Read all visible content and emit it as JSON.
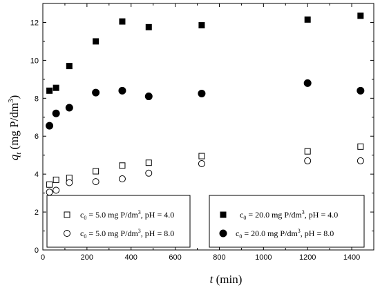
{
  "chart_data": {
    "type": "scatter",
    "title": "",
    "xlabel": {
      "main": "t",
      "unit": " (min)"
    },
    "ylabel": {
      "q": "q",
      "sub": "t",
      "unit": " (mg P/dm",
      "sup": "3",
      "close": ")"
    },
    "xlim": [
      0,
      1500
    ],
    "ylim": [
      0,
      13
    ],
    "xticks": [
      0,
      200,
      400,
      600,
      800,
      1000,
      1200,
      1400
    ],
    "yticks": [
      0,
      2,
      4,
      6,
      8,
      10,
      12
    ],
    "grid": false,
    "legend_placement": "inside-bottom",
    "series": [
      {
        "name": "c0 = 5.0 mg P/dm3, pH = 4.0",
        "legend": {
          "c": "c",
          "sub": "0",
          "pre": " = 5.0 mg P/dm",
          "sup": "3",
          "post": ", pH = 4.0"
        },
        "marker": "square-open",
        "x": [
          30,
          60,
          120,
          240,
          360,
          480,
          720,
          1200,
          1440
        ],
        "y": [
          3.45,
          3.7,
          3.8,
          4.15,
          4.45,
          4.6,
          4.95,
          5.2,
          5.45
        ]
      },
      {
        "name": "c0 = 5.0 mg P/dm3, pH = 8.0",
        "legend": {
          "c": "c",
          "sub": "0",
          "pre": " = 5.0 mg P/dm",
          "sup": "3",
          "post": ", pH = 8.0"
        },
        "marker": "circle-open",
        "x": [
          30,
          60,
          120,
          240,
          360,
          480,
          720,
          1200,
          1440
        ],
        "y": [
          3.05,
          3.15,
          3.55,
          3.6,
          3.75,
          4.05,
          4.55,
          4.7,
          4.7
        ]
      },
      {
        "name": "c0 = 20.0 mg P/dm3, pH = 4.0",
        "legend": {
          "c": "c",
          "sub": "0",
          "pre": " = 20.0 mg P/dm",
          "sup": "3",
          "post": ", pH = 4.0"
        },
        "marker": "square-filled",
        "x": [
          30,
          60,
          120,
          240,
          360,
          480,
          720,
          1200,
          1440
        ],
        "y": [
          8.4,
          8.55,
          9.7,
          11.0,
          12.05,
          11.75,
          11.85,
          12.15,
          12.35
        ]
      },
      {
        "name": "c0 = 20.0 mg P/dm3, pH = 8.0",
        "legend": {
          "c": "c",
          "sub": "0",
          "pre": " = 20.0 mg P/dm",
          "sup": "3",
          "post": ", pH = 8.0"
        },
        "marker": "circle-filled",
        "x": [
          30,
          60,
          120,
          240,
          360,
          480,
          720,
          1200,
          1440
        ],
        "y": [
          6.55,
          7.2,
          7.5,
          8.3,
          8.4,
          8.1,
          8.25,
          8.8,
          8.4
        ]
      }
    ]
  }
}
